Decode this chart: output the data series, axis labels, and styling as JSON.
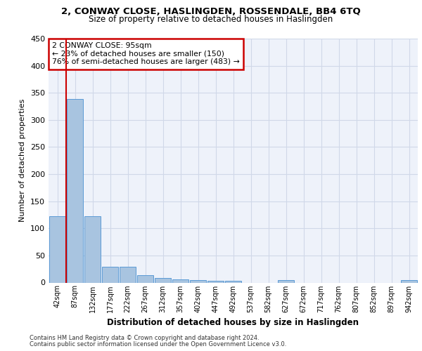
{
  "title1": "2, CONWAY CLOSE, HASLINGDEN, ROSSENDALE, BB4 6TQ",
  "title2": "Size of property relative to detached houses in Haslingden",
  "xlabel": "Distribution of detached houses by size in Haslingden",
  "ylabel": "Number of detached properties",
  "categories": [
    "42sqm",
    "87sqm",
    "132sqm",
    "177sqm",
    "222sqm",
    "267sqm",
    "312sqm",
    "357sqm",
    "402sqm",
    "447sqm",
    "492sqm",
    "537sqm",
    "582sqm",
    "627sqm",
    "672sqm",
    "717sqm",
    "762sqm",
    "807sqm",
    "852sqm",
    "897sqm",
    "942sqm"
  ],
  "values": [
    122,
    338,
    122,
    29,
    29,
    14,
    8,
    6,
    5,
    3,
    3,
    0,
    0,
    5,
    0,
    0,
    0,
    0,
    0,
    0,
    4
  ],
  "bar_color": "#a8c4e0",
  "bar_edge_color": "#5b9bd5",
  "annotation_text1": "2 CONWAY CLOSE: 95sqm",
  "annotation_text2": "← 23% of detached houses are smaller (150)",
  "annotation_text3": "76% of semi-detached houses are larger (483) →",
  "annotation_box_color": "#ffffff",
  "annotation_box_edge": "#cc0000",
  "red_line_color": "#cc0000",
  "grid_color": "#d0d8e8",
  "bg_color": "#eef2fa",
  "ylim": [
    0,
    450
  ],
  "footer1": "Contains HM Land Registry data © Crown copyright and database right 2024.",
  "footer2": "Contains public sector information licensed under the Open Government Licence v3.0."
}
